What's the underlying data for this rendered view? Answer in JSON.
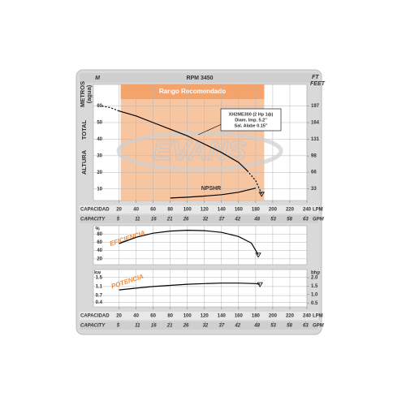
{
  "chart_data": [
    {
      "type": "line",
      "title": "RPM 3450",
      "y_unit": "M",
      "y2_unit": [
        "FT",
        "FEET"
      ],
      "y_label": [
        "METROS",
        "(agua)",
        "TOTAL",
        "ALTURA"
      ],
      "xlim": [
        -10,
        240
      ],
      "xticks": [
        20,
        40,
        60,
        80,
        100,
        120,
        140,
        160,
        180,
        200,
        220,
        240
      ],
      "x2lim": [
        -2.642,
        63.41
      ],
      "x2ticks": [
        5,
        11,
        16,
        21,
        26,
        32,
        37,
        42,
        48,
        53,
        58,
        63
      ],
      "x_label": "CAPACIDAD",
      "x_unit": "LPM",
      "x2_label": "CAPACITY",
      "x2_unit": "GPM",
      "ylim": [
        3,
        73
      ],
      "yticks": [
        10,
        20,
        30,
        40,
        50,
        60
      ],
      "y2lim": [
        9.84,
        239.5
      ],
      "y2ticks": [
        33,
        66,
        98,
        131,
        164,
        197
      ],
      "band": {
        "label": "Rango Recomendado",
        "range": [
          22,
          190
        ],
        "color": "#f7bb90"
      },
      "watermark": "EVANS",
      "annotation": [
        "XH2ME300 (2 Hp 1ф)",
        "Diam. Imp. 5.2\"",
        "Sal. Alabe 0.15\""
      ],
      "npsh_label": "NPSHR",
      "series": [
        {
          "x": [
            0,
            10,
            20
          ],
          "values": [
            60,
            59,
            57
          ],
          "dash": true,
          "color": "#000000"
        },
        {
          "x": [
            20,
            40,
            60,
            80,
            100,
            120,
            140,
            160,
            170
          ],
          "values": [
            57,
            54,
            50,
            46,
            42,
            37,
            32,
            26,
            21
          ],
          "dash": false,
          "color": "#000000"
        },
        {
          "x": [
            170,
            180,
            187
          ],
          "values": [
            21,
            15,
            7
          ],
          "dash": true,
          "color": "#000000",
          "end_marker": true
        },
        {
          "x": [
            80,
            100,
            120,
            140,
            160,
            180
          ],
          "values": [
            4.5,
            5,
            5.7,
            6.5,
            8,
            10.5
          ],
          "dash": false,
          "color": "#000000"
        }
      ]
    },
    {
      "type": "line",
      "title": "EFICIENCIA",
      "y_unit": "%",
      "xlim": [
        -10,
        240
      ],
      "ylim": [
        6,
        100
      ],
      "yticks": [
        20,
        40,
        60,
        80
      ],
      "series": [
        {
          "x": [
            20,
            40,
            60,
            80,
            100,
            120,
            140,
            160,
            175,
            183
          ],
          "values": [
            57,
            72,
            82,
            87,
            89,
            88,
            84,
            74,
            58,
            30
          ],
          "dash": false,
          "color": "#000000",
          "end_marker": true
        }
      ]
    },
    {
      "type": "line",
      "title": "POTENCIA",
      "y_unit": "kw",
      "y2_unit": "bhp",
      "xlim": [
        -10,
        240
      ],
      "xticks": [
        20,
        40,
        60,
        80,
        100,
        120,
        140,
        160,
        180,
        200,
        220,
        240
      ],
      "x2lim": [
        -2.642,
        63.41
      ],
      "x2ticks": [
        5,
        11,
        16,
        21,
        26,
        32,
        37,
        42,
        48,
        53,
        58,
        63
      ],
      "x_label": "CAPACIDAD",
      "x_unit": "LPM",
      "x2_label": "CAPACITY",
      "x2_unit": "GPM",
      "ylim": [
        0.2,
        1.85
      ],
      "yticks": [
        0.4,
        0.7,
        1.1,
        1.5
      ],
      "y2lim": [
        0.268,
        2.481
      ],
      "y2ticks": [
        0.5,
        {
          "value": 1,
          "label": "1.0"
        },
        1.5,
        {
          "value": 2,
          "label": "2.0"
        }
      ],
      "series": [
        {
          "x": [
            20,
            40,
            60,
            80,
            100,
            120,
            140,
            160,
            180,
            185
          ],
          "values": [
            0.95,
            1.03,
            1.1,
            1.15,
            1.2,
            1.23,
            1.25,
            1.25,
            1.23,
            1.2
          ],
          "dash": false,
          "color": "#000000",
          "end_marker": true
        }
      ]
    }
  ]
}
